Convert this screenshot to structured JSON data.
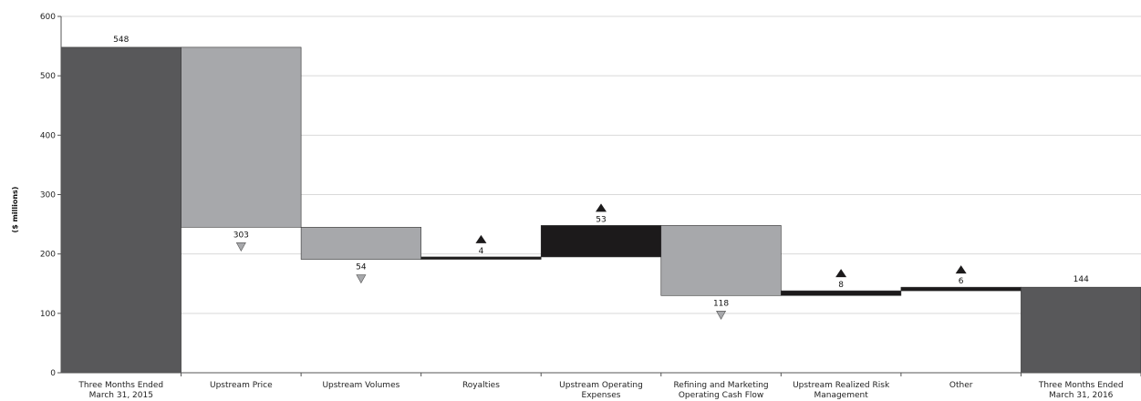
{
  "chart_data": {
    "type": "bar",
    "subtype": "waterfall",
    "title": "",
    "ylabel": "($ millions)",
    "xlabel": "",
    "ylim": [
      0,
      600
    ],
    "yticks": [
      0,
      100,
      200,
      300,
      400,
      500,
      600
    ],
    "grid": true,
    "legend": "none",
    "categories": [
      [
        "Three Months Ended",
        "March 31, 2015"
      ],
      [
        "Upstream Price"
      ],
      [
        "Upstream Volumes"
      ],
      [
        "Royalties"
      ],
      [
        "Upstream Operating",
        "Expenses"
      ],
      [
        "Refining and Marketing",
        "Operating Cash Flow"
      ],
      [
        "Upstream Realized Risk",
        "Management"
      ],
      [
        "Other"
      ],
      [
        "Three Months Ended",
        "March 31, 2016"
      ]
    ],
    "steps": [
      {
        "kind": "total",
        "value": 548,
        "label": "548"
      },
      {
        "kind": "decrease",
        "value": 303,
        "label": "303"
      },
      {
        "kind": "decrease",
        "value": 54,
        "label": "54"
      },
      {
        "kind": "increase",
        "value": 4,
        "label": "4"
      },
      {
        "kind": "increase",
        "value": 53,
        "label": "53"
      },
      {
        "kind": "decrease",
        "value": 118,
        "label": "118"
      },
      {
        "kind": "increase",
        "value": 8,
        "label": "8"
      },
      {
        "kind": "increase",
        "value": 6,
        "label": "6"
      },
      {
        "kind": "total",
        "value": 144,
        "label": "144"
      }
    ],
    "colors": {
      "total": "#58585a",
      "decrease": "#a7a8ab",
      "increase": "#1c1a1b",
      "grid": "#d9d9d9",
      "arrow_down": "#a7a8ab",
      "arrow_up": "#1c1a1b"
    }
  }
}
